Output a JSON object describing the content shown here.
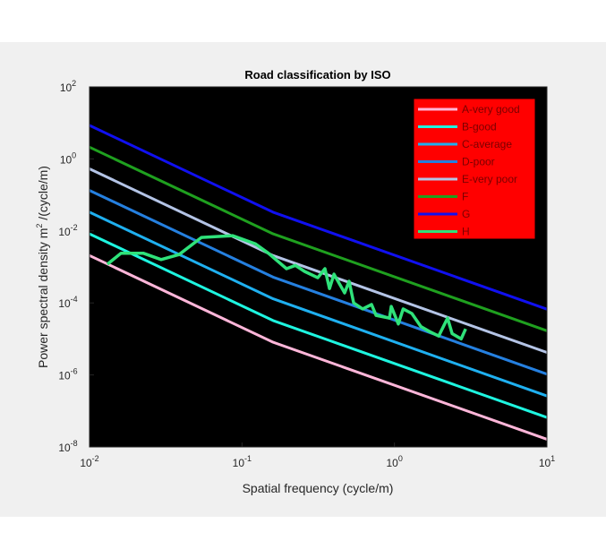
{
  "chart_data": {
    "type": "line",
    "title": "Road classification by ISO",
    "xlabel": "Spatial frequency (cycle/m)",
    "ylabel_main": "Power spectral density m",
    "ylabel_sup": "2",
    "ylabel_tail": " /(cycle/m)",
    "xscale": "log",
    "yscale": "log",
    "xlim": [
      0.01,
      10
    ],
    "ylim": [
      1e-08,
      100
    ],
    "xticks": [
      {
        "base": "10",
        "exp": "-2",
        "value": 0.01
      },
      {
        "base": "10",
        "exp": "-1",
        "value": 0.1
      },
      {
        "base": "10",
        "exp": "0",
        "value": 1
      },
      {
        "base": "10",
        "exp": "1",
        "value": 10
      }
    ],
    "yticks": [
      {
        "base": "10",
        "exp": "2",
        "value": 100
      },
      {
        "base": "10",
        "exp": "0",
        "value": 1
      },
      {
        "base": "10",
        "exp": "-2",
        "value": 0.01
      },
      {
        "base": "10",
        "exp": "-4",
        "value": 0.0001
      },
      {
        "base": "10",
        "exp": "-6",
        "value": 1e-06
      },
      {
        "base": "10",
        "exp": "-8",
        "value": 1e-08
      }
    ],
    "background": "#000000",
    "legend_position": "top-right",
    "legend_background": "#ff0000",
    "series": [
      {
        "name": "A-very good",
        "color": "#ffb6d9",
        "x": [
          0.01,
          0.16,
          10
        ],
        "y": [
          0.00207,
          8.1e-06,
          1.64e-08
        ]
      },
      {
        "name": "B-good",
        "color": "#1ef5e0",
        "x": [
          0.01,
          0.16,
          10
        ],
        "y": [
          0.0083,
          3.24e-05,
          6.6e-08
        ]
      },
      {
        "name": "C-average",
        "color": "#1fb0f0",
        "x": [
          0.01,
          0.16,
          10
        ],
        "y": [
          0.0332,
          0.00013,
          2.6e-07
        ]
      },
      {
        "name": "D-poor",
        "color": "#2580e0",
        "x": [
          0.01,
          0.16,
          10
        ],
        "y": [
          0.133,
          0.00052,
          1.05e-06
        ]
      },
      {
        "name": "E-very poor",
        "color": "#b4c4e6",
        "x": [
          0.01,
          0.16,
          10
        ],
        "y": [
          0.531,
          0.00207,
          4.2e-06
        ]
      },
      {
        "name": "F",
        "color": "#1fa01f",
        "x": [
          0.01,
          0.16,
          10
        ],
        "y": [
          2.12,
          0.0083,
          1.68e-05
        ]
      },
      {
        "name": "G",
        "color": "#1010f0",
        "x": [
          0.01,
          0.16,
          10
        ],
        "y": [
          8.5,
          0.0332,
          6.7e-05
        ]
      },
      {
        "name": "H",
        "color": "#2fe27a",
        "x": [
          0.0131,
          0.0161,
          0.0225,
          0.0295,
          0.0387,
          0.0542,
          0.087,
          0.122,
          0.149,
          0.196,
          0.224,
          0.257,
          0.314,
          0.35,
          0.375,
          0.401,
          0.471,
          0.504,
          0.54,
          0.618,
          0.708,
          0.757,
          0.927,
          0.953,
          1.06,
          1.14,
          1.3,
          1.49,
          1.7,
          1.95,
          2.23,
          2.39,
          2.74,
          2.93
        ],
        "y": [
          0.00119,
          0.0024,
          0.0024,
          0.0016,
          0.0022,
          0.0066,
          0.0074,
          0.0044,
          0.0024,
          0.00089,
          0.0011,
          0.00075,
          0.0005,
          0.00089,
          0.00025,
          0.00063,
          0.00019,
          0.0004,
          0.0001,
          6.8e-05,
          9e-05,
          4.5e-05,
          3.8e-05,
          8e-05,
          2.6e-05,
          6.8e-05,
          5.1e-05,
          2.2e-05,
          1.6e-05,
          1.2e-05,
          3.8e-05,
          1.4e-05,
          1e-05,
          1.9e-05
        ]
      }
    ]
  }
}
